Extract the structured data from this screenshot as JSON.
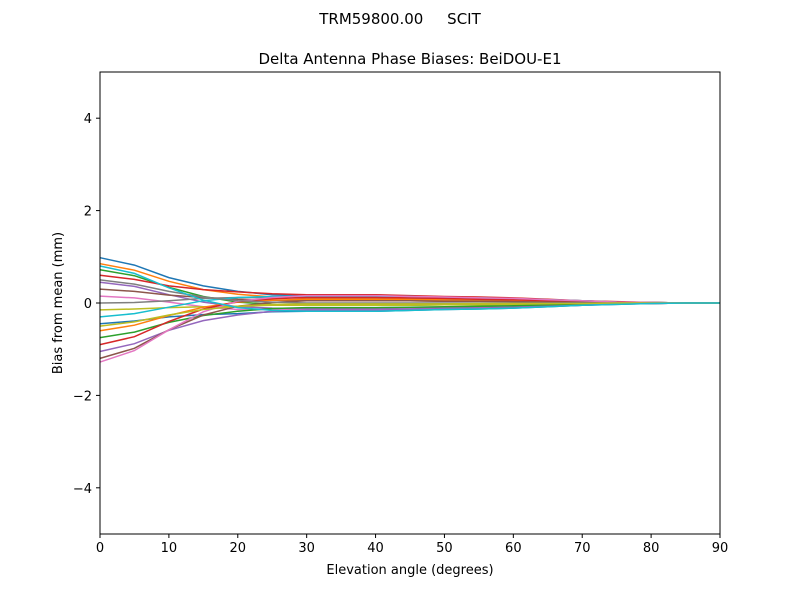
{
  "figure_title": "TRM59800.00     SCIT",
  "chart_data": {
    "type": "line",
    "title": "Delta Antenna Phase Biases: BeiDOU-E1",
    "xlabel": "Elevation angle (degrees)",
    "ylabel": "Bias from mean (mm)",
    "xlim": [
      0,
      90
    ],
    "ylim": [
      -5,
      5
    ],
    "xticks": [
      0,
      10,
      20,
      30,
      40,
      50,
      60,
      70,
      80,
      90
    ],
    "yticks": [
      -4,
      -2,
      0,
      2,
      4
    ],
    "ytick_labels": [
      "−4",
      "−2",
      "0",
      "2",
      "4"
    ],
    "grid": false,
    "colors": [
      "#1f77b4",
      "#ff7f0e",
      "#2ca02c",
      "#d62728",
      "#9467bd",
      "#8c564b",
      "#e377c2",
      "#7f7f7f",
      "#bcbd22",
      "#17becf"
    ],
    "x": [
      0,
      5,
      10,
      15,
      20,
      25,
      30,
      35,
      40,
      45,
      50,
      55,
      60,
      65,
      70,
      75,
      80,
      85,
      90
    ],
    "series": [
      {
        "values": [
          0.98,
          0.82,
          0.55,
          0.37,
          0.25,
          0.18,
          0.15,
          0.15,
          0.15,
          0.14,
          0.12,
          0.11,
          0.09,
          0.07,
          0.05,
          0.02,
          0.01,
          0,
          0
        ]
      },
      {
        "values": [
          0.85,
          0.71,
          0.47,
          0.29,
          0.19,
          0.13,
          0.1,
          0.1,
          0.1,
          0.09,
          0.08,
          0.07,
          0.06,
          0.05,
          0.03,
          0.02,
          0.01,
          0,
          0
        ]
      },
      {
        "values": [
          0.72,
          0.59,
          0.34,
          0.14,
          0.02,
          -0.03,
          -0.05,
          -0.05,
          -0.05,
          -0.05,
          -0.04,
          -0.04,
          -0.03,
          -0.02,
          -0.02,
          -0.01,
          0,
          0,
          0
        ]
      },
      {
        "values": [
          0.6,
          0.51,
          0.37,
          0.29,
          0.24,
          0.2,
          0.18,
          0.18,
          0.18,
          0.16,
          0.14,
          0.13,
          0.11,
          0.08,
          0.05,
          0.03,
          0.01,
          0,
          0
        ]
      },
      {
        "values": [
          0.45,
          0.36,
          0.18,
          0.02,
          -0.08,
          -0.11,
          -0.12,
          -0.12,
          -0.12,
          -0.11,
          -0.1,
          -0.08,
          -0.07,
          -0.05,
          -0.04,
          -0.02,
          -0.01,
          0,
          0
        ]
      },
      {
        "values": [
          0.3,
          0.25,
          0.17,
          0.12,
          0.08,
          0.06,
          0.05,
          0.05,
          0.05,
          0.05,
          0.04,
          0.04,
          0.03,
          0.02,
          0.02,
          0.01,
          0,
          0,
          0
        ]
      },
      {
        "values": [
          0.15,
          0.11,
          0.02,
          -0.08,
          -0.14,
          -0.14,
          -0.15,
          -0.15,
          -0.15,
          -0.14,
          -0.12,
          -0.11,
          -0.09,
          -0.07,
          -0.05,
          -0.02,
          -0.01,
          0,
          0
        ]
      },
      {
        "values": [
          0,
          0.01,
          0.05,
          0.1,
          0.12,
          0.12,
          0.12,
          0.12,
          0.12,
          0.11,
          0.1,
          0.08,
          0.07,
          0.05,
          0.04,
          0.02,
          0.01,
          0,
          0
        ]
      },
      {
        "values": [
          -0.15,
          -0.13,
          -0.1,
          -0.08,
          -0.07,
          -0.05,
          -0.05,
          -0.05,
          -0.05,
          -0.05,
          -0.04,
          -0.04,
          -0.03,
          -0.02,
          -0.02,
          -0.01,
          0,
          0,
          0
        ]
      },
      {
        "values": [
          -0.3,
          -0.23,
          -0.09,
          0.05,
          0.12,
          0.14,
          0.15,
          0.15,
          0.15,
          0.14,
          0.12,
          0.11,
          0.09,
          0.07,
          0.05,
          0.02,
          0.01,
          0,
          0
        ]
      },
      {
        "values": [
          -0.45,
          -0.39,
          -0.3,
          -0.25,
          -0.23,
          -0.19,
          -0.18,
          -0.18,
          -0.18,
          -0.16,
          -0.14,
          -0.13,
          -0.11,
          -0.08,
          -0.05,
          -0.03,
          -0.01,
          0,
          0
        ]
      },
      {
        "values": [
          -0.6,
          -0.48,
          -0.27,
          -0.09,
          0.02,
          0.06,
          0.08,
          0.08,
          0.08,
          0.07,
          0.06,
          0.06,
          0.05,
          0.04,
          0.02,
          0.01,
          0,
          0,
          0
        ]
      },
      {
        "values": [
          -0.75,
          -0.63,
          -0.42,
          -0.27,
          -0.18,
          -0.12,
          -0.1,
          -0.1,
          -0.1,
          -0.09,
          -0.08,
          -0.07,
          -0.06,
          -0.05,
          -0.03,
          -0.02,
          -0.01,
          0,
          0
        ]
      },
      {
        "values": [
          -0.9,
          -0.73,
          -0.4,
          -0.13,
          0.03,
          0.09,
          0.12,
          0.12,
          0.12,
          0.11,
          0.1,
          0.08,
          0.07,
          0.05,
          0.04,
          0.02,
          0.01,
          0,
          0
        ]
      },
      {
        "values": [
          -1.05,
          -0.88,
          -0.59,
          -0.38,
          -0.26,
          -0.18,
          -0.15,
          -0.15,
          -0.15,
          -0.14,
          -0.12,
          -0.11,
          -0.09,
          -0.07,
          -0.05,
          -0.02,
          -0.01,
          0,
          0
        ]
      },
      {
        "values": [
          -1.2,
          -0.98,
          -0.58,
          -0.26,
          -0.07,
          0.01,
          0.05,
          0.05,
          0.05,
          0.05,
          0.04,
          0.04,
          0.03,
          0.02,
          0.02,
          0.01,
          0,
          0,
          0
        ]
      },
      {
        "values": [
          -1.28,
          -1.03,
          -0.58,
          -0.19,
          0.04,
          0.12,
          0.16,
          0.16,
          0.16,
          0.14,
          0.13,
          0.11,
          0.1,
          0.07,
          0.05,
          0.02,
          0.01,
          0,
          0
        ]
      },
      {
        "values": [
          0.5,
          0.41,
          0.25,
          0.13,
          0.05,
          0.02,
          0,
          0,
          0,
          0,
          0,
          0,
          0,
          0,
          0,
          0,
          0,
          0,
          0
        ]
      },
      {
        "values": [
          -0.5,
          -0.41,
          -0.26,
          -0.14,
          -0.07,
          -0.03,
          -0.02,
          -0.02,
          -0.02,
          -0.02,
          -0.02,
          -0.01,
          -0.01,
          -0.01,
          -0.01,
          0,
          0,
          0,
          0
        ]
      },
      {
        "values": [
          0.8,
          0.64,
          0.33,
          0.06,
          -0.1,
          -0.16,
          -0.18,
          -0.18,
          -0.18,
          -0.16,
          -0.14,
          -0.13,
          -0.11,
          -0.08,
          -0.05,
          -0.03,
          -0.01,
          0,
          0
        ]
      }
    ]
  }
}
